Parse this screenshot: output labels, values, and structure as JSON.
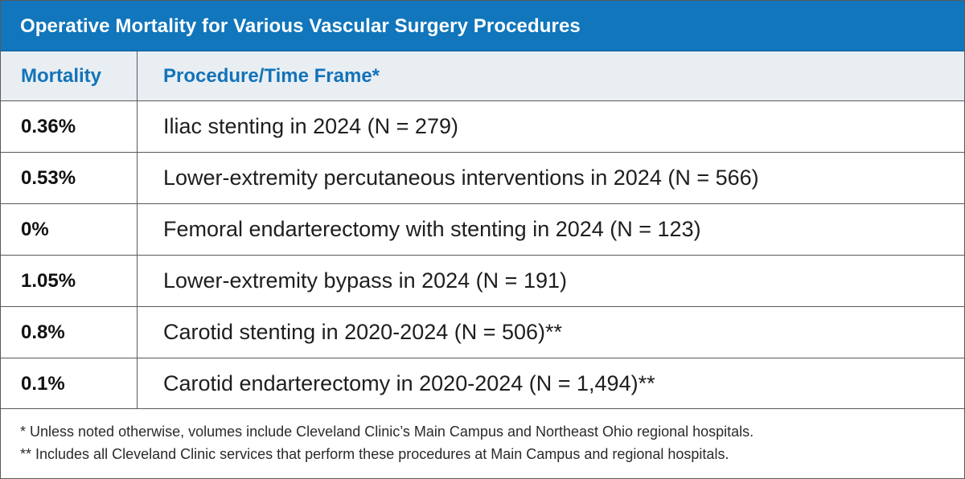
{
  "table": {
    "title": "Operative Mortality for Various Vascular Surgery Procedures",
    "headers": {
      "mortality": "Mortality",
      "procedure": "Procedure/Time Frame*"
    },
    "rows": [
      {
        "mortality": "0.36%",
        "procedure": "Iliac stenting in 2024 (N = 279)"
      },
      {
        "mortality": "0.53%",
        "procedure": "Lower-extremity percutaneous interventions in 2024 (N = 566)"
      },
      {
        "mortality": "0%",
        "procedure": "Femoral endarterectomy with stenting in 2024 (N = 123)"
      },
      {
        "mortality": "1.05%",
        "procedure": "Lower-extremity bypass in 2024 (N = 191)"
      },
      {
        "mortality": "0.8%",
        "procedure": "Carotid stenting in 2020-2024 (N = 506)**"
      },
      {
        "mortality": "0.1%",
        "procedure": "Carotid endarterectomy in 2020-2024 (N = 1,494)**"
      }
    ],
    "notes": [
      " * Unless noted otherwise, volumes include Cleveland Clinic’s Main Campus and Northeast Ohio regional hospitals.",
      "** Includes all Cleveland Clinic services that perform these procedures at Main Campus and regional hospitals."
    ]
  },
  "colors": {
    "title_bar": "#1176bc",
    "header_background": "#e9eef3",
    "header_text": "#1373b8",
    "border": "#5a5a5a"
  }
}
